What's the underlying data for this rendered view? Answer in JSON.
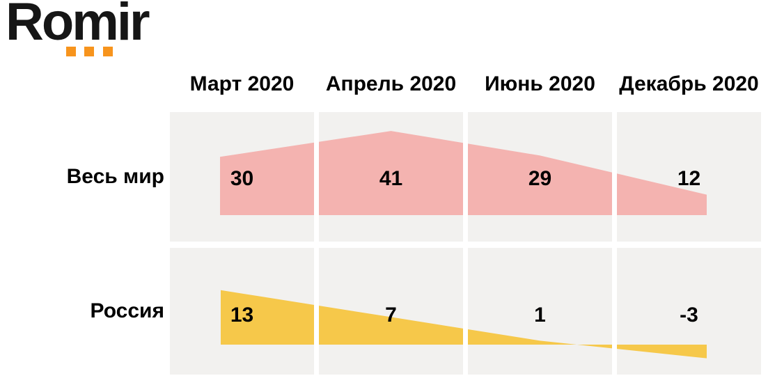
{
  "logo": {
    "text": "Romir",
    "dot_color": "#f7941d"
  },
  "columns": [
    "Март 2020",
    "Апрель 2020",
    "Июнь 2020",
    "Декабрь 2020"
  ],
  "rows": [
    {
      "label": "Весь мир",
      "values": [
        30,
        41,
        29,
        12
      ]
    },
    {
      "label": "Россия",
      "values": [
        13,
        7,
        1,
        -3
      ]
    }
  ],
  "colors": {
    "world_fill": "#f4b3b0",
    "russia_fill": "#f6c84a",
    "cell_background": "#f2f1ef",
    "logo_orange": "#f7941d",
    "text": "#000000"
  },
  "chart_data": {
    "type": "area",
    "categories": [
      "Март 2020",
      "Апрель 2020",
      "Июнь 2020",
      "Декабрь 2020"
    ],
    "series": [
      {
        "name": "Весь мир",
        "values": [
          30,
          41,
          29,
          12
        ],
        "color": "#f4b3b0"
      },
      {
        "name": "Россия",
        "values": [
          13,
          7,
          1,
          -3
        ],
        "color": "#f6c84a"
      }
    ],
    "title": "",
    "xlabel": "",
    "ylabel": "",
    "baseline": 0,
    "value_labels_shown": true,
    "grid": "off",
    "legend": "row labels at left"
  }
}
